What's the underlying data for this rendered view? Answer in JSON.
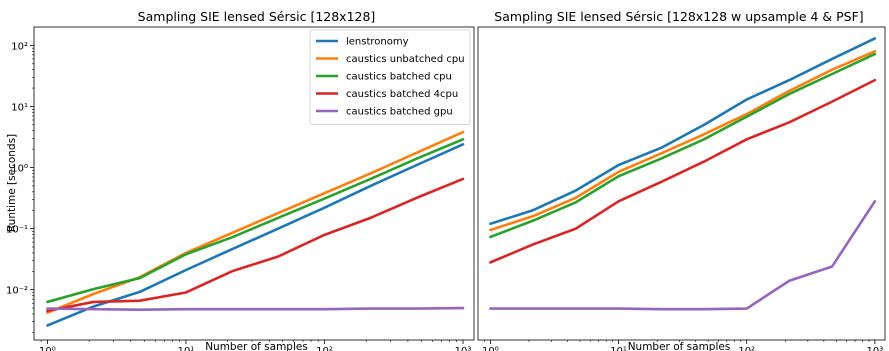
{
  "chart_data": [
    {
      "type": "line",
      "title": "Sampling SIE lensed Sérsic [128x128]",
      "xlabel": "Number of samples",
      "ylabel": "Runtime [seconds]",
      "xscale": "log",
      "yscale": "log",
      "xlim": [
        0.8,
        1200
      ],
      "ylim": [
        0.0015,
        200
      ],
      "xticks": [
        {
          "value": 1,
          "label": "10⁰"
        },
        {
          "value": 10,
          "label": "10¹"
        },
        {
          "value": 100,
          "label": "10²"
        },
        {
          "value": 1000,
          "label": "10³"
        }
      ],
      "yticks": [
        {
          "value": 0.01,
          "label": "10⁻²"
        },
        {
          "value": 0.1,
          "label": "10⁻¹"
        },
        {
          "value": 1,
          "label": "10⁰"
        },
        {
          "value": 10,
          "label": "10¹"
        },
        {
          "value": 100,
          "label": "10²"
        }
      ],
      "legend": "top-right",
      "grid": false,
      "series": [
        {
          "name": "lenstronomy",
          "color": "#1f77b4",
          "x": [
            1,
            2.15,
            4.64,
            10,
            21.5,
            46.4,
            100,
            215,
            464,
            1000
          ],
          "y": [
            0.0026,
            0.0053,
            0.0092,
            0.021,
            0.046,
            0.1,
            0.22,
            0.5,
            1.1,
            2.4
          ]
        },
        {
          "name": "caustics unbatched cpu",
          "color": "#ff7f0e",
          "x": [
            1,
            2.15,
            4.64,
            10,
            21.5,
            46.4,
            100,
            215,
            464,
            1000
          ],
          "y": [
            0.0042,
            0.0085,
            0.016,
            0.04,
            0.085,
            0.18,
            0.38,
            0.8,
            1.75,
            3.8
          ]
        },
        {
          "name": "caustics batched cpu",
          "color": "#2ca02c",
          "x": [
            1,
            2.15,
            4.64,
            10,
            21.5,
            46.4,
            100,
            215,
            464,
            1000
          ],
          "y": [
            0.0063,
            0.0102,
            0.0155,
            0.038,
            0.072,
            0.15,
            0.31,
            0.65,
            1.4,
            2.9
          ]
        },
        {
          "name": "caustics batched 4cpu",
          "color": "#d62728",
          "x": [
            1,
            2.15,
            4.64,
            10,
            21.5,
            46.4,
            100,
            215,
            464,
            1000
          ],
          "y": [
            0.0045,
            0.0063,
            0.0066,
            0.009,
            0.02,
            0.035,
            0.079,
            0.15,
            0.32,
            0.65
          ]
        },
        {
          "name": "caustics batched gpu",
          "color": "#9467bd",
          "x": [
            1,
            2.15,
            4.64,
            10,
            21.5,
            46.4,
            100,
            215,
            464,
            1000
          ],
          "y": [
            0.0049,
            0.0048,
            0.0047,
            0.0048,
            0.0048,
            0.0048,
            0.0048,
            0.0049,
            0.0049,
            0.005
          ]
        }
      ]
    },
    {
      "type": "line",
      "title": "Sampling SIE lensed Sérsic [128x128 w upsample 4 & PSF]",
      "xlabel": "Number of samples",
      "ylabel": "",
      "xscale": "log",
      "yscale": "log",
      "xlim": [
        0.8,
        1200
      ],
      "ylim": [
        0.0015,
        200
      ],
      "xticks": [
        {
          "value": 1,
          "label": "10⁰"
        },
        {
          "value": 10,
          "label": "10¹"
        },
        {
          "value": 100,
          "label": "10²"
        },
        {
          "value": 1000,
          "label": "10³"
        }
      ],
      "yticks": [],
      "grid": false,
      "series": [
        {
          "name": "lenstronomy",
          "color": "#1f77b4",
          "x": [
            1,
            2.15,
            4.64,
            10,
            21.5,
            46.4,
            100,
            215,
            464,
            1000
          ],
          "y": [
            0.12,
            0.2,
            0.42,
            1.1,
            2.1,
            5,
            13,
            27,
            60,
            130
          ]
        },
        {
          "name": "caustics unbatched cpu",
          "color": "#ff7f0e",
          "x": [
            1,
            2.15,
            4.64,
            10,
            21.5,
            46.4,
            100,
            215,
            464,
            1000
          ],
          "y": [
            0.095,
            0.16,
            0.32,
            0.85,
            1.7,
            3.5,
            7.5,
            18,
            40,
            80
          ]
        },
        {
          "name": "caustics batched cpu",
          "color": "#2ca02c",
          "x": [
            1,
            2.15,
            4.64,
            10,
            21.5,
            46.4,
            100,
            215,
            464,
            1000
          ],
          "y": [
            0.073,
            0.135,
            0.27,
            0.72,
            1.4,
            2.9,
            6.8,
            16,
            34,
            72
          ]
        },
        {
          "name": "caustics batched 4cpu",
          "color": "#d62728",
          "x": [
            1,
            2.15,
            4.64,
            10,
            21.5,
            46.4,
            100,
            215,
            464,
            1000
          ],
          "y": [
            0.028,
            0.055,
            0.1,
            0.28,
            0.58,
            1.25,
            2.9,
            5.5,
            12,
            27
          ]
        },
        {
          "name": "caustics batched gpu",
          "color": "#9467bd",
          "x": [
            1,
            2.15,
            4.64,
            10,
            21.5,
            46.4,
            100,
            215,
            464,
            1000
          ],
          "y": [
            0.0049,
            0.0049,
            0.0049,
            0.0049,
            0.0048,
            0.0048,
            0.0049,
            0.014,
            0.024,
            0.28
          ]
        }
      ]
    }
  ]
}
